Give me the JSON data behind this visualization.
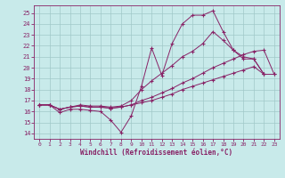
{
  "background_color": "#c8eaea",
  "grid_color": "#a0c8c8",
  "line_color": "#882266",
  "xlabel": "Windchill (Refroidissement éolien,°C)",
  "xlim": [
    -0.5,
    23.5
  ],
  "ylim": [
    13.5,
    25.7
  ],
  "xticks": [
    0,
    1,
    2,
    3,
    4,
    5,
    6,
    7,
    8,
    9,
    10,
    11,
    12,
    13,
    14,
    15,
    16,
    17,
    18,
    19,
    20,
    21,
    22,
    23
  ],
  "yticks": [
    14,
    15,
    16,
    17,
    18,
    19,
    20,
    21,
    22,
    23,
    24,
    25
  ],
  "series": [
    {
      "x": [
        0,
        1,
        2,
        3,
        4,
        5,
        6,
        7,
        8,
        9,
        10,
        11,
        12,
        13,
        14,
        15,
        16,
        17,
        18,
        19,
        20,
        21,
        22
      ],
      "y": [
        16.6,
        16.6,
        15.9,
        16.2,
        16.2,
        16.1,
        16.0,
        15.2,
        14.1,
        15.6,
        18.3,
        21.8,
        19.3,
        22.2,
        24.0,
        24.8,
        24.8,
        25.2,
        23.3,
        21.6,
        20.8,
        20.8,
        19.4
      ]
    },
    {
      "x": [
        0,
        1,
        2,
        3,
        4,
        5,
        6,
        7,
        8,
        9,
        10,
        11,
        12,
        13,
        14,
        15,
        16,
        17,
        18,
        19,
        20,
        21,
        22
      ],
      "y": [
        16.6,
        16.6,
        16.2,
        16.4,
        16.6,
        16.5,
        16.5,
        16.4,
        16.5,
        17.0,
        18.0,
        18.8,
        19.5,
        20.2,
        21.0,
        21.5,
        22.2,
        23.3,
        22.5,
        21.6,
        21.0,
        20.8,
        19.4
      ]
    },
    {
      "x": [
        0,
        1,
        2,
        3,
        4,
        5,
        6,
        7,
        8,
        9,
        10,
        11,
        12,
        13,
        14,
        15,
        16,
        17,
        18,
        19,
        20,
        21,
        22,
        23
      ],
      "y": [
        16.6,
        16.6,
        16.2,
        16.4,
        16.5,
        16.4,
        16.4,
        16.3,
        16.4,
        16.6,
        17.0,
        17.3,
        17.7,
        18.1,
        18.6,
        19.0,
        19.5,
        20.0,
        20.4,
        20.8,
        21.2,
        21.5,
        21.6,
        19.4
      ]
    },
    {
      "x": [
        0,
        1,
        2,
        3,
        4,
        5,
        6,
        7,
        8,
        9,
        10,
        11,
        12,
        13,
        14,
        15,
        16,
        17,
        18,
        19,
        20,
        21,
        22,
        23
      ],
      "y": [
        16.6,
        16.6,
        16.2,
        16.4,
        16.5,
        16.4,
        16.4,
        16.3,
        16.4,
        16.6,
        16.8,
        17.0,
        17.3,
        17.6,
        18.0,
        18.3,
        18.6,
        18.9,
        19.2,
        19.5,
        19.8,
        20.1,
        19.4,
        19.4
      ]
    }
  ]
}
